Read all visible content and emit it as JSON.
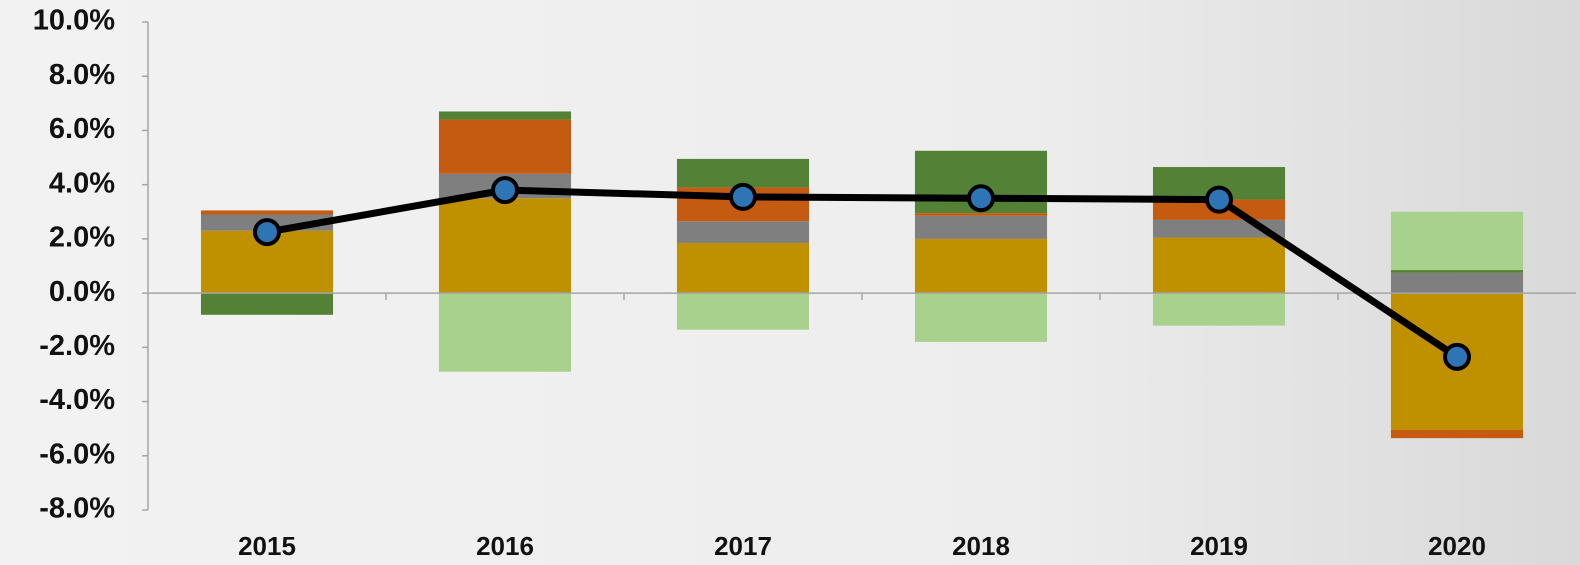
{
  "chart_data": {
    "type": "bar",
    "categories": [
      "2015",
      "2016",
      "2017",
      "2018",
      "2019",
      "2020"
    ],
    "series": [
      {
        "color": "#bf9000",
        "values": [
          2.3,
          3.5,
          1.85,
          2.0,
          2.05,
          -5.05
        ]
      },
      {
        "color": "#7f7f7f",
        "values": [
          0.6,
          0.9,
          0.8,
          0.85,
          0.65,
          0.75
        ]
      },
      {
        "color": "#c55a11",
        "values": [
          0.15,
          2.0,
          1.25,
          0.1,
          0.75,
          -0.3
        ]
      },
      {
        "color": "#538135",
        "values": [
          -0.8,
          0.3,
          1.05,
          2.3,
          1.2,
          0.1
        ]
      },
      {
        "color": "#a9d18e",
        "values": [
          0,
          -2.9,
          -1.35,
          -1.8,
          -1.2,
          2.15
        ]
      },
      {
        "type": "line",
        "color": "#000000",
        "marker_color": "#2e75b6",
        "values": [
          2.25,
          3.8,
          3.55,
          3.5,
          3.45,
          -2.35
        ]
      }
    ],
    "ylim": [
      -8,
      10
    ],
    "yticks": [
      {
        "value": -8,
        "label": "-8.0%"
      },
      {
        "value": -6,
        "label": "-6.0%"
      },
      {
        "value": -4,
        "label": "-4.0%"
      },
      {
        "value": -2,
        "label": "-2.0%"
      },
      {
        "value": 0,
        "label": "0.0%"
      },
      {
        "value": 2,
        "label": "2.0%"
      },
      {
        "value": 4,
        "label": "4.0%"
      },
      {
        "value": 6,
        "label": "6.0%"
      },
      {
        "value": 8,
        "label": "8.0%"
      },
      {
        "value": 10,
        "label": "10.0%"
      }
    ],
    "grid": false
  }
}
